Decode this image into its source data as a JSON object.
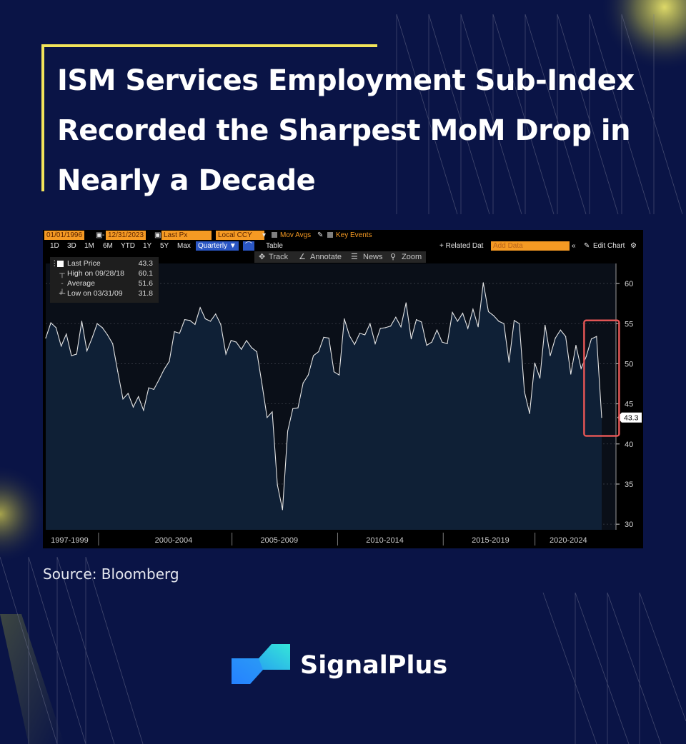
{
  "headline": {
    "title": "ISM Services Employment Sub-Index Recorded the Sharpest MoM Drop in Nearly a Decade"
  },
  "terminal": {
    "start_date": "01/01/1996",
    "end_date": "12/31/2023",
    "field": "Last Px",
    "currency": "Local CCY",
    "mov_avgs": "Mov Avgs",
    "key_events": "Key Events",
    "ranges": [
      "1D",
      "3D",
      "1M",
      "6M",
      "YTD",
      "1Y",
      "5Y",
      "Max"
    ],
    "period": "Quarterly ▼",
    "table_label": "Table",
    "related": "+ Related Dat",
    "add_data_placeholder": "Add Data",
    "edit_chart": "Edit Chart",
    "tools": [
      "Track",
      "Annotate",
      "News",
      "Zoom"
    ]
  },
  "legend": {
    "last_label": "Last Price",
    "last_value": "43.3",
    "high_label": "High on 09/28/18",
    "high_value": "60.1",
    "avg_label": "Average",
    "avg_value": "51.6",
    "low_label": "Low on 03/31/09",
    "low_value": "31.8"
  },
  "chart_data": {
    "type": "area",
    "y_ticks": [
      30,
      35,
      40,
      45,
      50,
      55,
      60
    ],
    "ylim": [
      29.3,
      62.5
    ],
    "x_tick_labels": [
      "1997-1999",
      "2000-2004",
      "2005-2009",
      "2010-2014",
      "2015-2019",
      "2020-2024"
    ],
    "last_value_label": "43.3",
    "highlight_box": {
      "from_index": 105,
      "to_index": 110,
      "y_range": [
        43.5,
        55.4
      ]
    },
    "series": [
      {
        "values": [
          53.2,
          55.1,
          54.5,
          52.2,
          53.7,
          51.0,
          51.2,
          55.3,
          51.6,
          53.2,
          55.0,
          54.5,
          53.6,
          52.5,
          49.0,
          45.6,
          46.3,
          44.6,
          45.9,
          44.2,
          47.0,
          46.8,
          48.0,
          49.3,
          50.3,
          54.0,
          53.8,
          55.5,
          55.4,
          54.9,
          57.0,
          55.6,
          55.3,
          56.2,
          54.9,
          51.2,
          52.9,
          52.7,
          51.8,
          52.9,
          52.0,
          51.5,
          47.5,
          43.3,
          44.0,
          34.9,
          31.8,
          41.6,
          44.4,
          44.5,
          47.6,
          48.6,
          51.0,
          51.5,
          53.3,
          53.2,
          49.0,
          48.6,
          55.6,
          53.5,
          52.4,
          53.8,
          53.6,
          55.0,
          52.5,
          54.4,
          54.5,
          54.7,
          55.8,
          54.6,
          57.6,
          53.1,
          55.5,
          55.2,
          52.3,
          52.7,
          54.2,
          52.7,
          52.5,
          56.4,
          55.3,
          56.3,
          54.4,
          56.8,
          54.6,
          60.1,
          56.5,
          56.0,
          55.3,
          55.0,
          50.2,
          55.4,
          55.0,
          46.5,
          43.8,
          50.1,
          48.2,
          54.8,
          51.0,
          53.2,
          54.2,
          53.4,
          48.7,
          52.3,
          49.4,
          50.9,
          53.1,
          53.4,
          43.3
        ]
      }
    ]
  },
  "source": "Source: Bloomberg",
  "brand": {
    "name": "SignalPlus"
  }
}
